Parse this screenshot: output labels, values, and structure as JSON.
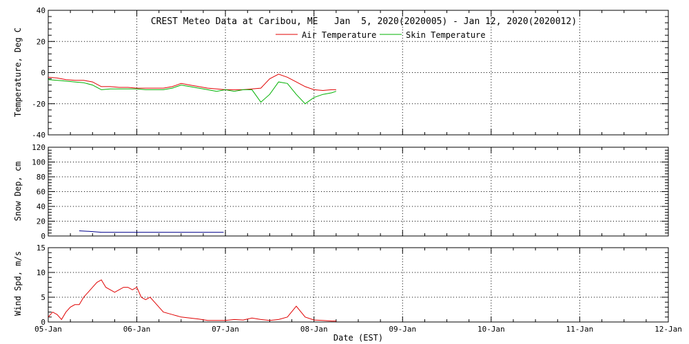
{
  "title": "CREST Meteo Data at Caribou, ME   Jan  5, 2020(2020005) - Jan 12, 2020(2020012)",
  "xlabel": "Date (EST)",
  "x_tick_labels": [
    "05-Jan",
    "06-Jan",
    "07-Jan",
    "08-Jan",
    "09-Jan",
    "10-Jan",
    "11-Jan",
    "12-Jan"
  ],
  "colors": {
    "air": "#e00000",
    "skin": "#00b000",
    "snow": "#00008b",
    "wind": "#e00000",
    "axis": "#000000"
  },
  "chart_data": [
    {
      "type": "line",
      "ylabel": "Temperature, Deg C",
      "ylim": [
        -40,
        40
      ],
      "y_ticks": [
        -40,
        -20,
        0,
        20,
        40
      ],
      "xlim": [
        0,
        7
      ],
      "x_unit": "days since 05-Jan 00:00 EST",
      "grid": true,
      "legend": {
        "placement": "top-center"
      },
      "series": [
        {
          "name": "Air Temperature",
          "x": [
            0,
            0.1,
            0.2,
            0.3,
            0.4,
            0.5,
            0.6,
            0.7,
            0.8,
            0.9,
            1.0,
            1.1,
            1.2,
            1.3,
            1.4,
            1.5,
            1.6,
            1.7,
            1.8,
            1.9,
            2.0,
            2.1,
            2.2,
            2.3,
            2.4,
            2.5,
            2.6,
            2.7,
            2.8,
            2.9,
            3.0,
            3.1,
            3.2,
            3.25
          ],
          "y": [
            -3,
            -3.5,
            -4.5,
            -5,
            -5,
            -6,
            -9,
            -9,
            -9.5,
            -9.5,
            -10,
            -10,
            -10,
            -10,
            -9,
            -7,
            -8,
            -9,
            -10,
            -10.5,
            -11,
            -11,
            -11,
            -10.5,
            -10,
            -4,
            -1,
            -3,
            -6,
            -9,
            -11,
            -11.5,
            -11,
            -11
          ]
        },
        {
          "name": "Skin Temperature",
          "x": [
            0,
            0.1,
            0.2,
            0.3,
            0.4,
            0.5,
            0.6,
            0.7,
            0.8,
            0.9,
            1.0,
            1.1,
            1.2,
            1.3,
            1.4,
            1.5,
            1.6,
            1.7,
            1.8,
            1.9,
            2.0,
            2.1,
            2.2,
            2.3,
            2.4,
            2.5,
            2.6,
            2.7,
            2.8,
            2.9,
            3.0,
            3.1,
            3.2,
            3.25
          ],
          "y": [
            -4.5,
            -5,
            -5.5,
            -6,
            -6.5,
            -8,
            -11,
            -10.5,
            -10.5,
            -10.5,
            -10.5,
            -11,
            -11,
            -11,
            -10,
            -8,
            -9,
            -10,
            -11,
            -12,
            -11,
            -12,
            -11,
            -11,
            -19,
            -14,
            -6,
            -7,
            -14,
            -20,
            -16,
            -14,
            -13,
            -12
          ]
        }
      ]
    },
    {
      "type": "line",
      "ylabel": "Snow Dep, cm",
      "ylim": [
        0,
        120
      ],
      "y_ticks": [
        0,
        20,
        40,
        60,
        80,
        100,
        120
      ],
      "xlim": [
        0,
        7
      ],
      "grid": true,
      "series": [
        {
          "x": [
            0.35,
            0.5,
            0.6,
            0.8,
            1.0,
            1.2,
            1.4,
            1.6,
            1.8,
            1.98
          ],
          "y": [
            7,
            6,
            5,
            5,
            5,
            5,
            5,
            5,
            5,
            5
          ]
        }
      ]
    },
    {
      "type": "line",
      "ylabel": "Wind Spd, m/s",
      "ylim": [
        0,
        15
      ],
      "y_ticks": [
        0,
        5,
        10,
        15
      ],
      "xlim": [
        0,
        7
      ],
      "grid": true,
      "series": [
        {
          "x": [
            0,
            0.05,
            0.1,
            0.15,
            0.2,
            0.25,
            0.3,
            0.35,
            0.4,
            0.45,
            0.5,
            0.55,
            0.6,
            0.65,
            0.7,
            0.75,
            0.8,
            0.85,
            0.9,
            0.95,
            1.0,
            1.05,
            1.1,
            1.15,
            1.2,
            1.3,
            1.4,
            1.5,
            1.6,
            1.7,
            1.8,
            1.9,
            2.0,
            2.1,
            2.2,
            2.3,
            2.4,
            2.5,
            2.6,
            2.7,
            2.8,
            2.9,
            3.0,
            3.1,
            3.2,
            3.25
          ],
          "y": [
            1,
            2,
            1.5,
            0.5,
            2,
            3,
            3.5,
            3.5,
            5,
            6,
            7,
            8,
            8.5,
            7,
            6.5,
            6,
            6.5,
            7,
            7,
            6.5,
            7,
            5,
            4.5,
            5,
            4,
            2,
            1.5,
            1,
            0.8,
            0.6,
            0.3,
            0.3,
            0.3,
            0.5,
            0.4,
            0.8,
            0.5,
            0.3,
            0.5,
            1,
            3.2,
            1,
            0.4,
            0.3,
            0.2,
            0.2
          ]
        }
      ]
    }
  ]
}
